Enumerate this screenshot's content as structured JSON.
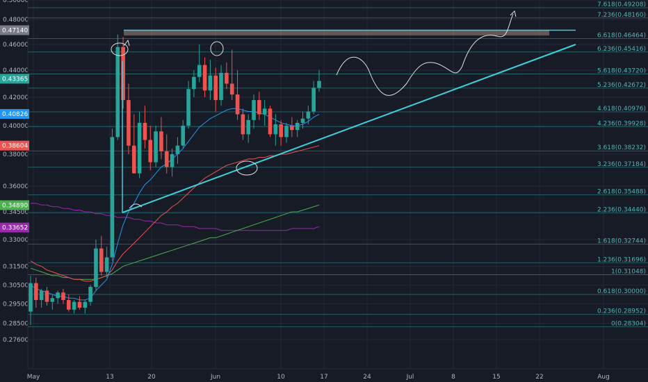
{
  "chart_data": {
    "type": "candlestick",
    "title": "",
    "xlabel": "",
    "ylabel": "",
    "y_ticks": [
      "0.50000",
      "0.48000",
      "0.46000",
      "0.44000",
      "0.42000",
      "0.40000",
      "0.38000",
      "0.36000",
      "0.34500",
      "0.33000",
      "0.31500",
      "0.30500",
      "0.29500",
      "0.28500",
      "0.27600"
    ],
    "x_ticks": [
      "May",
      "13",
      "20",
      "Jun",
      "10",
      "17",
      "24",
      "Jul",
      "8",
      "15",
      "22",
      "Aug"
    ],
    "price_tags": [
      {
        "label": "0.47140",
        "value": 0.4714,
        "color": "#787b86"
      },
      {
        "label": "0.43365",
        "value": 0.43365,
        "color": "#26a69a"
      },
      {
        "label": "0.40826",
        "value": 0.40826,
        "color": "#2196f3"
      },
      {
        "label": "0.38604",
        "value": 0.38604,
        "color": "#ef5350"
      },
      {
        "label": "0.34890",
        "value": 0.3489,
        "color": "#4caf50"
      },
      {
        "label": "0.33652",
        "value": 0.33652,
        "color": "#9c27b0"
      }
    ],
    "fib_levels": [
      {
        "label": "7.618(0.49208)",
        "value": 0.49208
      },
      {
        "label": "7.236(0.48160)",
        "value": 0.4816
      },
      {
        "label": "6.618(0.46464)",
        "value": 0.46464
      },
      {
        "label": "6.236(0.45416)",
        "value": 0.45416
      },
      {
        "label": "5.618(0.43720)",
        "value": 0.4372
      },
      {
        "label": "5.236(0.42672)",
        "value": 0.42672
      },
      {
        "label": "4.618(0.40976)",
        "value": 0.40976
      },
      {
        "label": "4.236(0.39928)",
        "value": 0.39928
      },
      {
        "label": "3.618(0.38232)",
        "value": 0.38232
      },
      {
        "label": "3.236(0.37184)",
        "value": 0.37184
      },
      {
        "label": "2.618(0.35488)",
        "value": 0.35488
      },
      {
        "label": "2.236(0.34440)",
        "value": 0.3444
      },
      {
        "label": "1.618(0.32744)",
        "value": 0.32744
      },
      {
        "label": "1.236(0.31696)",
        "value": 0.31696
      },
      {
        "label": "1(0.31048)",
        "value": 0.31048
      },
      {
        "label": "0.618(0.30000)",
        "value": 0.3
      },
      {
        "label": "0.236(0.28952)",
        "value": 0.28952
      },
      {
        "label": "0(0.28304)",
        "value": 0.28304
      }
    ],
    "candles": [
      {
        "o": 0.291,
        "h": 0.31,
        "l": 0.284,
        "c": 0.306
      },
      {
        "o": 0.306,
        "h": 0.309,
        "l": 0.293,
        "c": 0.297
      },
      {
        "o": 0.297,
        "h": 0.303,
        "l": 0.293,
        "c": 0.302
      },
      {
        "o": 0.302,
        "h": 0.304,
        "l": 0.294,
        "c": 0.296
      },
      {
        "o": 0.296,
        "h": 0.3,
        "l": 0.292,
        "c": 0.298
      },
      {
        "o": 0.298,
        "h": 0.302,
        "l": 0.295,
        "c": 0.301
      },
      {
        "o": 0.301,
        "h": 0.303,
        "l": 0.295,
        "c": 0.297
      },
      {
        "o": 0.297,
        "h": 0.3,
        "l": 0.291,
        "c": 0.292
      },
      {
        "o": 0.292,
        "h": 0.297,
        "l": 0.29,
        "c": 0.296
      },
      {
        "o": 0.296,
        "h": 0.299,
        "l": 0.292,
        "c": 0.293
      },
      {
        "o": 0.293,
        "h": 0.297,
        "l": 0.29,
        "c": 0.296
      },
      {
        "o": 0.296,
        "h": 0.305,
        "l": 0.294,
        "c": 0.304
      },
      {
        "o": 0.304,
        "h": 0.33,
        "l": 0.302,
        "c": 0.325
      },
      {
        "o": 0.325,
        "h": 0.332,
        "l": 0.31,
        "c": 0.312
      },
      {
        "o": 0.312,
        "h": 0.326,
        "l": 0.309,
        "c": 0.32
      },
      {
        "o": 0.32,
        "h": 0.398,
        "l": 0.318,
        "c": 0.392
      },
      {
        "o": 0.392,
        "h": 0.468,
        "l": 0.39,
        "c": 0.458
      },
      {
        "o": 0.458,
        "h": 0.466,
        "l": 0.412,
        "c": 0.418
      },
      {
        "o": 0.418,
        "h": 0.43,
        "l": 0.38,
        "c": 0.386
      },
      {
        "o": 0.386,
        "h": 0.408,
        "l": 0.368,
        "c": 0.368
      },
      {
        "o": 0.368,
        "h": 0.41,
        "l": 0.365,
        "c": 0.402
      },
      {
        "o": 0.402,
        "h": 0.414,
        "l": 0.384,
        "c": 0.39
      },
      {
        "o": 0.39,
        "h": 0.4,
        "l": 0.37,
        "c": 0.375
      },
      {
        "o": 0.375,
        "h": 0.4,
        "l": 0.372,
        "c": 0.396
      },
      {
        "o": 0.396,
        "h": 0.406,
        "l": 0.377,
        "c": 0.382
      },
      {
        "o": 0.382,
        "h": 0.394,
        "l": 0.368,
        "c": 0.372
      },
      {
        "o": 0.372,
        "h": 0.384,
        "l": 0.366,
        "c": 0.38
      },
      {
        "o": 0.38,
        "h": 0.392,
        "l": 0.374,
        "c": 0.386
      },
      {
        "o": 0.386,
        "h": 0.404,
        "l": 0.384,
        "c": 0.4
      },
      {
        "o": 0.4,
        "h": 0.432,
        "l": 0.398,
        "c": 0.426
      },
      {
        "o": 0.426,
        "h": 0.44,
        "l": 0.42,
        "c": 0.435
      },
      {
        "o": 0.435,
        "h": 0.46,
        "l": 0.431,
        "c": 0.444
      },
      {
        "o": 0.444,
        "h": 0.45,
        "l": 0.42,
        "c": 0.425
      },
      {
        "o": 0.425,
        "h": 0.448,
        "l": 0.418,
        "c": 0.436
      },
      {
        "o": 0.436,
        "h": 0.442,
        "l": 0.41,
        "c": 0.418
      },
      {
        "o": 0.418,
        "h": 0.444,
        "l": 0.414,
        "c": 0.438
      },
      {
        "o": 0.438,
        "h": 0.446,
        "l": 0.426,
        "c": 0.43
      },
      {
        "o": 0.43,
        "h": 0.456,
        "l": 0.418,
        "c": 0.422
      },
      {
        "o": 0.422,
        "h": 0.44,
        "l": 0.404,
        "c": 0.408
      },
      {
        "o": 0.408,
        "h": 0.412,
        "l": 0.39,
        "c": 0.394
      },
      {
        "o": 0.394,
        "h": 0.408,
        "l": 0.388,
        "c": 0.404
      },
      {
        "o": 0.404,
        "h": 0.422,
        "l": 0.398,
        "c": 0.418
      },
      {
        "o": 0.418,
        "h": 0.424,
        "l": 0.404,
        "c": 0.408
      },
      {
        "o": 0.408,
        "h": 0.418,
        "l": 0.4,
        "c": 0.412
      },
      {
        "o": 0.412,
        "h": 0.414,
        "l": 0.392,
        "c": 0.394
      },
      {
        "o": 0.394,
        "h": 0.408,
        "l": 0.386,
        "c": 0.401
      },
      {
        "o": 0.401,
        "h": 0.404,
        "l": 0.386,
        "c": 0.392
      },
      {
        "o": 0.392,
        "h": 0.402,
        "l": 0.388,
        "c": 0.4
      },
      {
        "o": 0.4,
        "h": 0.406,
        "l": 0.392,
        "c": 0.397
      },
      {
        "o": 0.397,
        "h": 0.404,
        "l": 0.392,
        "c": 0.402
      },
      {
        "o": 0.402,
        "h": 0.41,
        "l": 0.398,
        "c": 0.405
      },
      {
        "o": 0.405,
        "h": 0.414,
        "l": 0.401,
        "c": 0.41
      },
      {
        "o": 0.41,
        "h": 0.432,
        "l": 0.408,
        "c": 0.427
      },
      {
        "o": 0.427,
        "h": 0.44,
        "l": 0.424,
        "c": 0.432
      }
    ],
    "ma_blue": [
      0.305,
      0.303,
      0.302,
      0.301,
      0.3,
      0.299,
      0.299,
      0.298,
      0.298,
      0.297,
      0.297,
      0.298,
      0.302,
      0.305,
      0.308,
      0.316,
      0.328,
      0.338,
      0.345,
      0.35,
      0.356,
      0.361,
      0.364,
      0.368,
      0.372,
      0.374,
      0.377,
      0.38,
      0.384,
      0.389,
      0.394,
      0.399,
      0.402,
      0.405,
      0.407,
      0.409,
      0.411,
      0.412,
      0.412,
      0.411,
      0.41,
      0.41,
      0.409,
      0.408,
      0.406,
      0.404,
      0.402,
      0.401,
      0.4,
      0.4,
      0.401,
      0.403,
      0.406,
      0.408
    ],
    "ma_red": [
      0.318,
      0.316,
      0.315,
      0.313,
      0.312,
      0.311,
      0.31,
      0.309,
      0.308,
      0.308,
      0.307,
      0.307,
      0.308,
      0.309,
      0.31,
      0.313,
      0.318,
      0.322,
      0.325,
      0.328,
      0.331,
      0.334,
      0.337,
      0.34,
      0.343,
      0.345,
      0.348,
      0.35,
      0.353,
      0.356,
      0.359,
      0.362,
      0.365,
      0.367,
      0.369,
      0.371,
      0.373,
      0.374,
      0.375,
      0.376,
      0.377,
      0.377,
      0.378,
      0.378,
      0.379,
      0.379,
      0.38,
      0.38,
      0.381,
      0.382,
      0.383,
      0.384,
      0.385,
      0.386
    ],
    "ma_green": [
      0.314,
      0.313,
      0.312,
      0.311,
      0.31,
      0.31,
      0.309,
      0.309,
      0.308,
      0.308,
      0.308,
      0.308,
      0.308,
      0.309,
      0.31,
      0.311,
      0.313,
      0.315,
      0.316,
      0.317,
      0.318,
      0.319,
      0.32,
      0.321,
      0.322,
      0.323,
      0.324,
      0.325,
      0.326,
      0.327,
      0.328,
      0.329,
      0.33,
      0.331,
      0.331,
      0.332,
      0.333,
      0.334,
      0.335,
      0.336,
      0.337,
      0.338,
      0.339,
      0.34,
      0.341,
      0.342,
      0.343,
      0.344,
      0.345,
      0.345,
      0.346,
      0.347,
      0.348,
      0.349
    ],
    "ma_purple": [
      0.35,
      0.35,
      0.349,
      0.349,
      0.348,
      0.348,
      0.347,
      0.347,
      0.346,
      0.346,
      0.345,
      0.345,
      0.344,
      0.344,
      0.343,
      0.343,
      0.342,
      0.342,
      0.342,
      0.341,
      0.341,
      0.34,
      0.34,
      0.339,
      0.339,
      0.338,
      0.338,
      0.338,
      0.337,
      0.337,
      0.337,
      0.336,
      0.336,
      0.336,
      0.336,
      0.335,
      0.335,
      0.335,
      0.335,
      0.335,
      0.335,
      0.335,
      0.335,
      0.335,
      0.335,
      0.335,
      0.335,
      0.335,
      0.336,
      0.336,
      0.336,
      0.336,
      0.336,
      0.337
    ],
    "colors": {
      "up": "#26a69a",
      "down": "#ef5350",
      "trend": "#3ed0dc",
      "resistance_fill": "#a1887f",
      "grid": "#24293a"
    }
  }
}
